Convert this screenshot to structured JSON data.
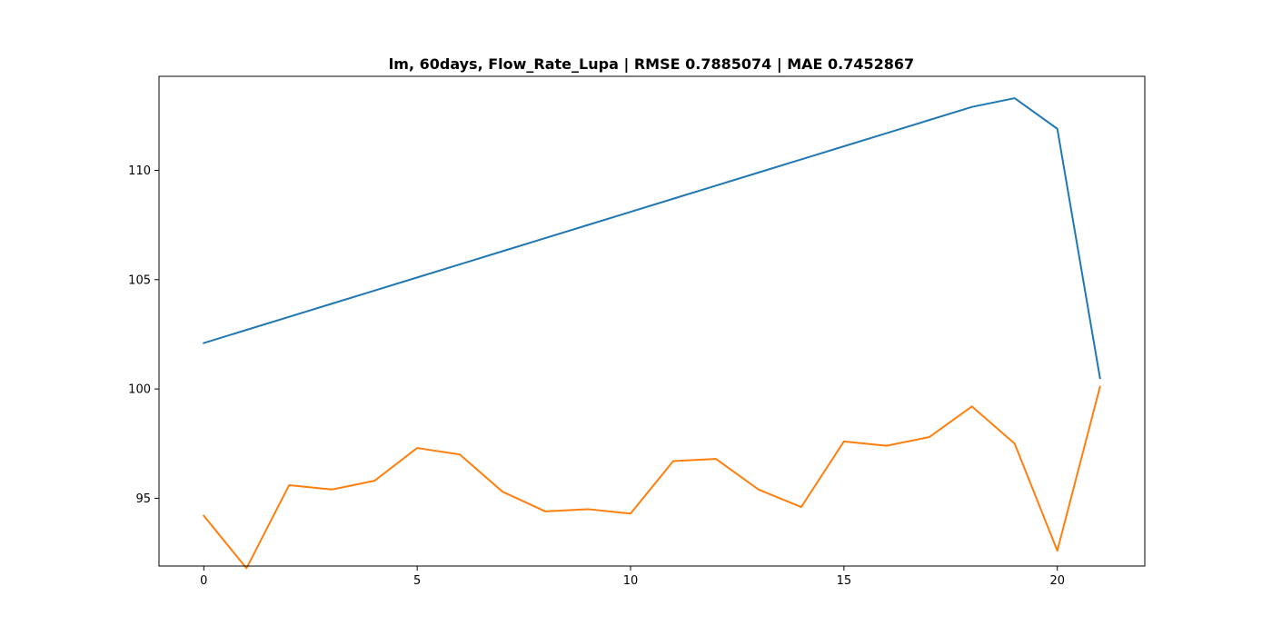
{
  "chart_data": {
    "type": "line",
    "title": "lm, 60days, Flow_Rate_Lupa | RMSE 0.7885074 | MAE 0.7452867",
    "xlabel": "",
    "ylabel": "",
    "xlim": [
      -1.05,
      22.05
    ],
    "ylim": [
      91.9,
      114.3
    ],
    "x_ticks": [
      0,
      5,
      10,
      15,
      20
    ],
    "y_ticks": [
      95,
      100,
      105,
      110
    ],
    "grid": false,
    "x": [
      0,
      1,
      2,
      3,
      4,
      5,
      6,
      7,
      8,
      9,
      10,
      11,
      12,
      13,
      14,
      15,
      16,
      17,
      18,
      19,
      20,
      21
    ],
    "series": [
      {
        "color": "#1f77b4",
        "values": [
          102.1,
          102.7,
          103.3,
          103.9,
          104.5,
          105.1,
          105.7,
          106.3,
          106.9,
          107.5,
          108.1,
          108.7,
          109.3,
          109.9,
          110.5,
          111.1,
          111.7,
          112.3,
          112.9,
          113.3,
          111.9,
          100.5
        ]
      },
      {
        "color": "#ff7f0e",
        "values": [
          94.2,
          91.8,
          95.6,
          95.4,
          95.8,
          97.3,
          97.0,
          95.3,
          94.4,
          94.5,
          94.3,
          96.7,
          96.8,
          95.4,
          94.6,
          97.6,
          97.4,
          97.8,
          99.2,
          97.5,
          92.6,
          100.1
        ]
      }
    ]
  }
}
